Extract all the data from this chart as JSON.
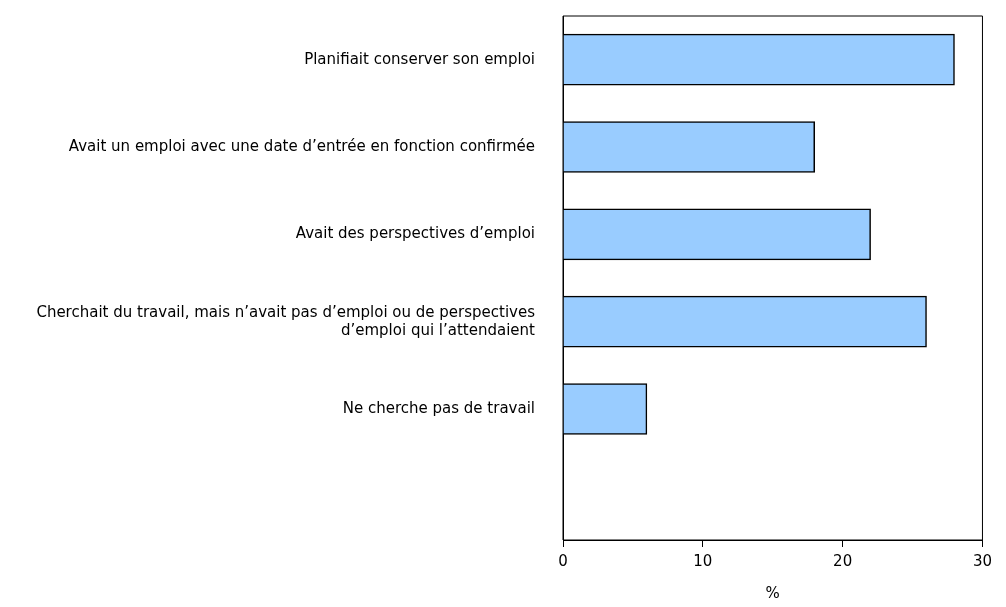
{
  "chart_data": {
    "type": "bar",
    "orientation": "horizontal",
    "xlabel": "%",
    "categories": [
      "Planifiait conserver son emploi",
      "Avait un emploi avec une date d’entrée en fonction confirmée",
      "Avait des perspectives d’emploi",
      "Cherchait du travail, mais n’avait pas d’emploi ou de perspectives d’emploi qui l’attendaient",
      "Ne cherche pas de travail"
    ],
    "values": [
      28,
      18,
      22,
      26,
      6
    ],
    "color": "#99ccff",
    "xlim": [
      0,
      30
    ],
    "xticks": [
      0,
      10,
      20,
      30
    ],
    "grid": false,
    "legend": false
  }
}
